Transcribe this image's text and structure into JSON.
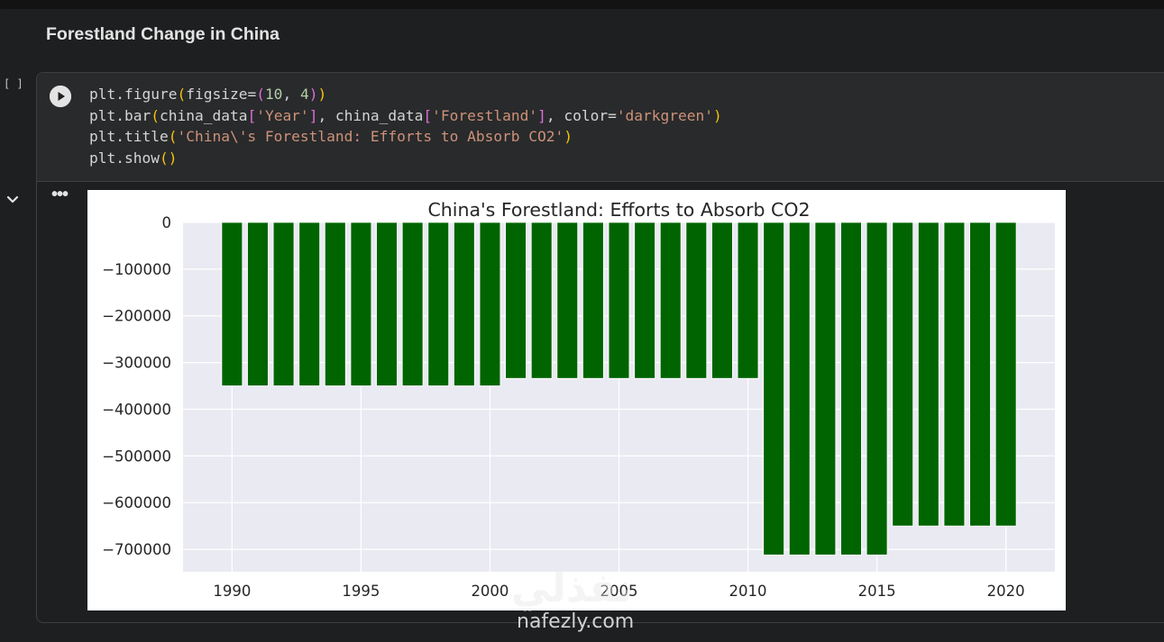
{
  "section": {
    "title": "Forestland Change in China"
  },
  "cell": {
    "exec_count": "[ ]",
    "code_lines": [
      [
        {
          "t": "plt.figure",
          "c": "plain"
        },
        {
          "t": "(",
          "c": "paren"
        },
        {
          "t": "figsize=",
          "c": "plain"
        },
        {
          "t": "(",
          "c": "brk"
        },
        {
          "t": "10",
          "c": "num"
        },
        {
          "t": ", ",
          "c": "plain"
        },
        {
          "t": "4",
          "c": "num"
        },
        {
          "t": ")",
          "c": "brk"
        },
        {
          "t": ")",
          "c": "paren"
        }
      ],
      [
        {
          "t": "plt.bar",
          "c": "plain"
        },
        {
          "t": "(",
          "c": "paren"
        },
        {
          "t": "china_data",
          "c": "plain"
        },
        {
          "t": "[",
          "c": "brk"
        },
        {
          "t": "'Year'",
          "c": "str"
        },
        {
          "t": "]",
          "c": "brk"
        },
        {
          "t": ", china_data",
          "c": "plain"
        },
        {
          "t": "[",
          "c": "brk"
        },
        {
          "t": "'Forestland'",
          "c": "str"
        },
        {
          "t": "]",
          "c": "brk"
        },
        {
          "t": ", color=",
          "c": "plain"
        },
        {
          "t": "'darkgreen'",
          "c": "str"
        },
        {
          "t": ")",
          "c": "paren"
        }
      ],
      [
        {
          "t": "plt.title",
          "c": "plain"
        },
        {
          "t": "(",
          "c": "paren"
        },
        {
          "t": "'China\\'s Forestland: Efforts to Absorb CO2'",
          "c": "str"
        },
        {
          "t": ")",
          "c": "paren"
        }
      ],
      [
        {
          "t": "plt.show",
          "c": "plain"
        },
        {
          "t": "()",
          "c": "paren"
        }
      ]
    ],
    "output_menu": "•••"
  },
  "watermark": {
    "arabic": "نفذلي",
    "latin": "nafezly.com"
  },
  "colors": {
    "bar": "#006400",
    "plot_bg": "#eaeaf2",
    "grid": "#ffffff"
  },
  "icons": {
    "run": "play-circle-icon",
    "collapse": "chevron-down-icon",
    "menu": "more-horiz-icon"
  },
  "chart_data": {
    "type": "bar",
    "title": "China's Forestland: Efforts to Absorb CO2",
    "xlabel": "",
    "ylabel": "",
    "x": [
      1990,
      1991,
      1992,
      1993,
      1994,
      1995,
      1996,
      1997,
      1998,
      1999,
      2000,
      2001,
      2002,
      2003,
      2004,
      2005,
      2006,
      2007,
      2008,
      2009,
      2010,
      2011,
      2012,
      2013,
      2014,
      2015,
      2016,
      2017,
      2018,
      2019,
      2020
    ],
    "values": [
      -350000,
      -350000,
      -350000,
      -350000,
      -350000,
      -350000,
      -350000,
      -350000,
      -350000,
      -350000,
      -350000,
      -334000,
      -334000,
      -334000,
      -334000,
      -334000,
      -334000,
      -334000,
      -334000,
      -334000,
      -334000,
      -712000,
      -712000,
      -712000,
      -712000,
      -712000,
      -650000,
      -650000,
      -650000,
      -650000,
      -650000
    ],
    "xticks": [
      1990,
      1995,
      2000,
      2005,
      2010,
      2015,
      2020
    ],
    "xtick_labels": [
      "1990",
      "1995",
      "2000",
      "2005",
      "2010",
      "2015",
      "2020"
    ],
    "yticks": [
      0,
      -100000,
      -200000,
      -300000,
      -400000,
      -500000,
      -600000,
      -700000
    ],
    "ytick_labels": [
      "0",
      "−100000",
      "−200000",
      "−300000",
      "−400000",
      "−500000",
      "−600000",
      "−700000"
    ],
    "xlim": [
      1988.1,
      2021.9
    ],
    "ylim": [
      -748000,
      0
    ],
    "grid": true,
    "style": "seaborn-darkgrid"
  }
}
